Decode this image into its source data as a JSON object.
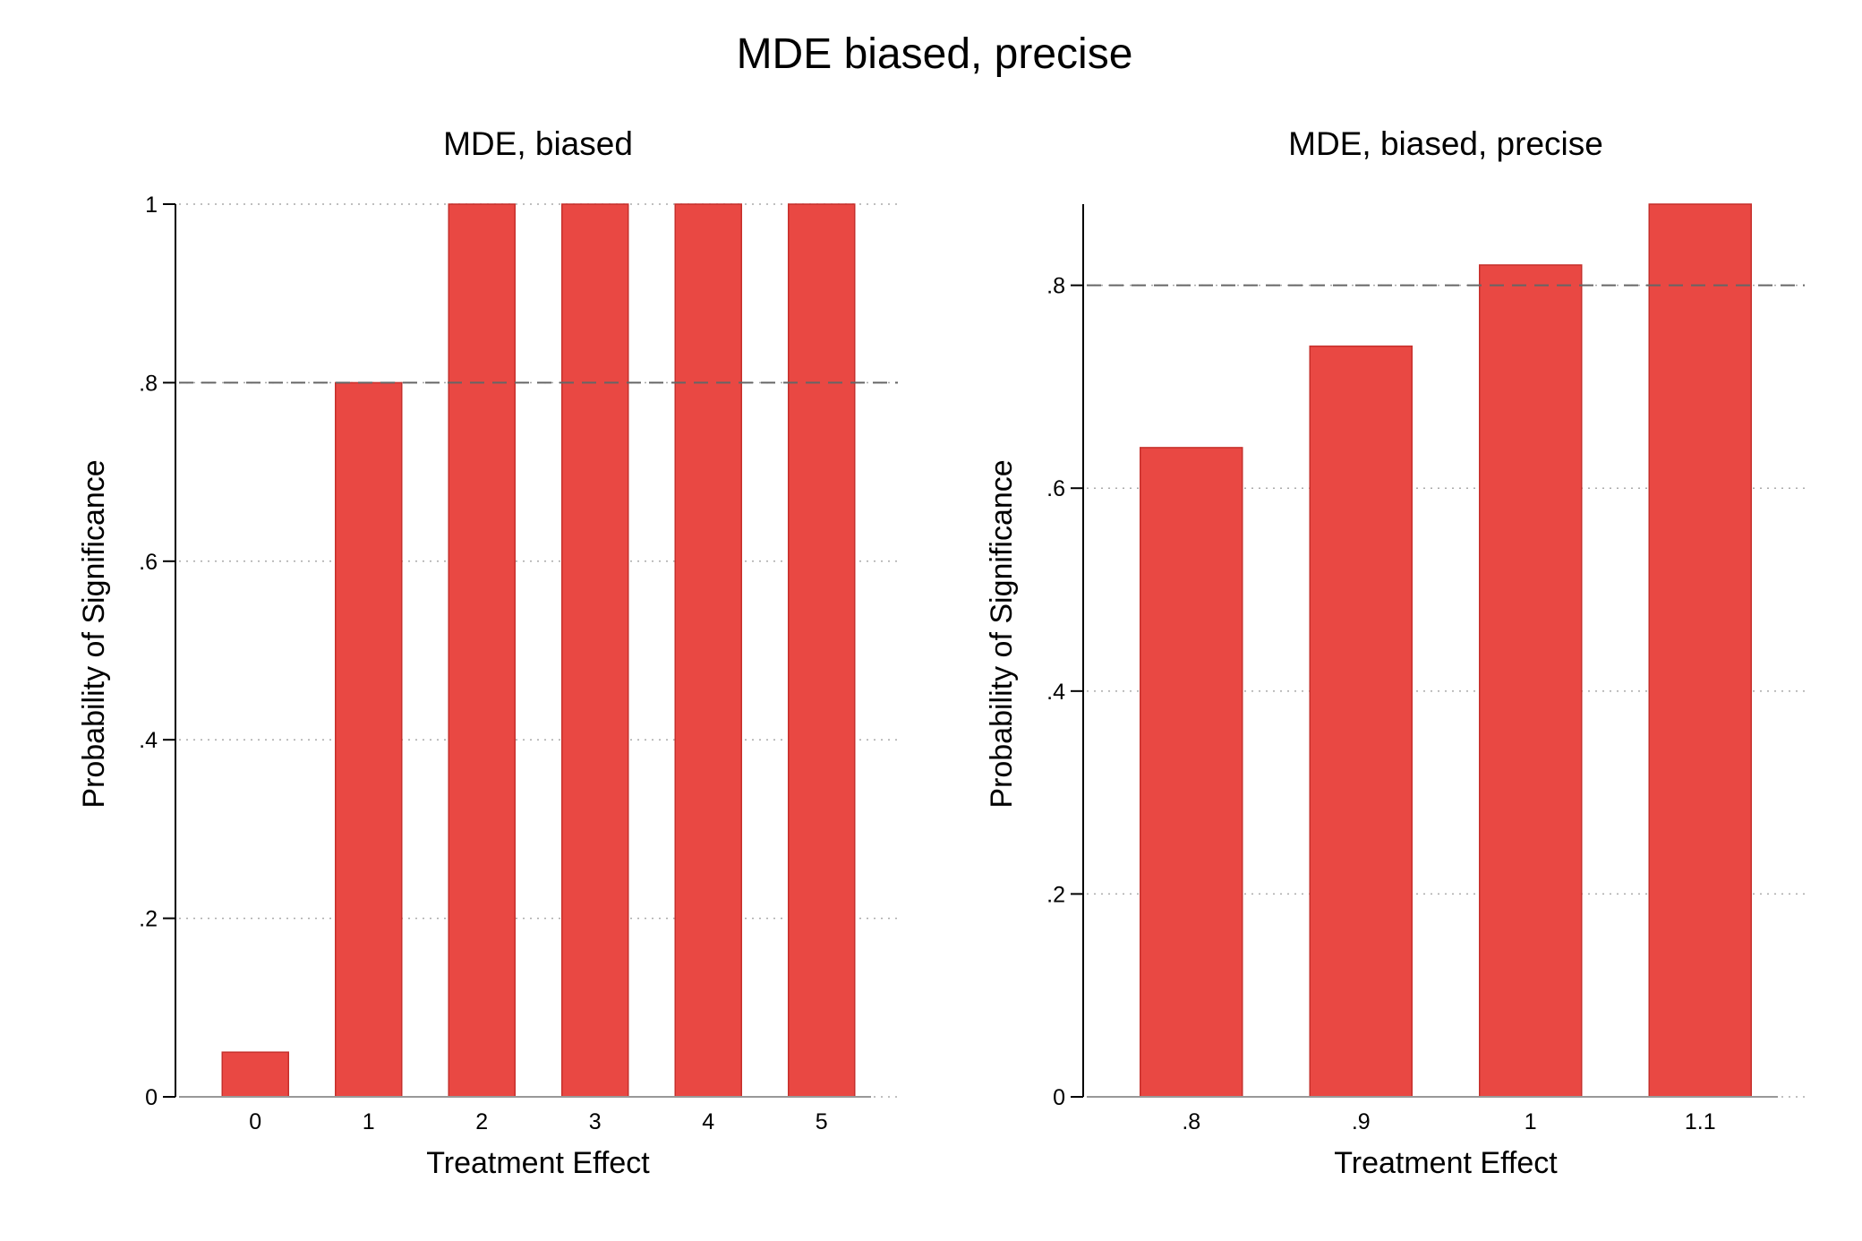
{
  "title": "MDE biased, precise",
  "chart_data": [
    {
      "type": "bar",
      "title": "MDE, biased",
      "xlabel": "Treatment Effect",
      "ylabel": "Probability of Significance",
      "categories": [
        "0",
        "1",
        "2",
        "3",
        "4",
        "5"
      ],
      "values": [
        0.05,
        0.8,
        1.0,
        1.0,
        1.0,
        1.0
      ],
      "yticks": [
        0,
        0.2,
        0.4,
        0.6,
        0.8,
        1.0
      ],
      "ytick_labels": [
        "0",
        ".2",
        ".4",
        ".6",
        ".8",
        "1"
      ],
      "ylim": [
        0,
        1
      ],
      "reference_line": 0.8,
      "bar_color": "#e94843",
      "grid": true,
      "legend": "none"
    },
    {
      "type": "bar",
      "title": "MDE, biased, precise",
      "xlabel": "Treatment Effect",
      "ylabel": "Probability of Significance",
      "categories": [
        ".8",
        ".9",
        "1",
        "1.1"
      ],
      "values": [
        0.64,
        0.74,
        0.82,
        0.88
      ],
      "yticks": [
        0,
        0.2,
        0.4,
        0.6,
        0.8
      ],
      "ytick_labels": [
        "0",
        ".2",
        ".4",
        ".6",
        ".8"
      ],
      "ylim": [
        0,
        0.88
      ],
      "reference_line": 0.8,
      "bar_color": "#e94843",
      "grid": true,
      "legend": "none"
    }
  ]
}
